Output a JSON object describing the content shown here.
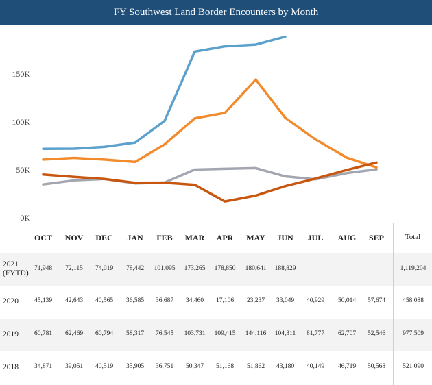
{
  "title": "FY Southwest Land Border Encounters by Month",
  "total_header": "Total",
  "chart_data": {
    "type": "line",
    "title": "FY Southwest Land Border Encounters by Month",
    "categories": [
      "OCT",
      "NOV",
      "DEC",
      "JAN",
      "FEB",
      "MAR",
      "APR",
      "MAY",
      "JUN",
      "JUL",
      "AUG",
      "SEP"
    ],
    "yticks": [
      "0K",
      "50K",
      "100K",
      "150K"
    ],
    "ylim": [
      0,
      200000
    ],
    "grid": false,
    "series": [
      {
        "name": "2021 (FYTD)",
        "label_lines": [
          "2021",
          "(FYTD)"
        ],
        "color": "#5ba1cc",
        "values": [
          71948,
          72115,
          74019,
          78442,
          101095,
          173265,
          178850,
          180641,
          188829,
          null,
          null,
          null
        ],
        "labels": [
          "71,948",
          "72,115",
          "74,019",
          "78,442",
          "101,095",
          "173,265",
          "178,850",
          "180,641",
          "188,829",
          "",
          "",
          ""
        ],
        "total": "1,119,204"
      },
      {
        "name": "2020",
        "label_lines": [
          "2020"
        ],
        "color": "#c8560e",
        "values": [
          45139,
          42643,
          40565,
          36585,
          36687,
          34460,
          17106,
          23237,
          33049,
          40929,
          50014,
          57674
        ],
        "labels": [
          "45,139",
          "42,643",
          "40,565",
          "36,585",
          "36,687",
          "34,460",
          "17,106",
          "23,237",
          "33,049",
          "40,929",
          "50,014",
          "57,674"
        ],
        "total": "458,088"
      },
      {
        "name": "2019",
        "label_lines": [
          "2019"
        ],
        "color": "#f28b2c",
        "values": [
          60781,
          62469,
          60794,
          58317,
          76545,
          103731,
          109415,
          144116,
          104311,
          81777,
          62707,
          52546
        ],
        "labels": [
          "60,781",
          "62,469",
          "60,794",
          "58,317",
          "76,545",
          "103,731",
          "109,415",
          "144,116",
          "104,311",
          "81,777",
          "62,707",
          "52,546"
        ],
        "total": "977,509"
      },
      {
        "name": "2018",
        "label_lines": [
          "2018"
        ],
        "color": "#a3a5b0",
        "values": [
          34871,
          39051,
          40519,
          35905,
          36751,
          50347,
          51168,
          51862,
          43180,
          40149,
          46719,
          50568
        ],
        "labels": [
          "34,871",
          "39,051",
          "40,519",
          "35,905",
          "36,751",
          "50,347",
          "51,168",
          "51,862",
          "43,180",
          "40,149",
          "46,719",
          "50,568"
        ],
        "total": "521,090"
      }
    ],
    "draw_order": [
      3,
      2,
      1,
      0
    ]
  }
}
